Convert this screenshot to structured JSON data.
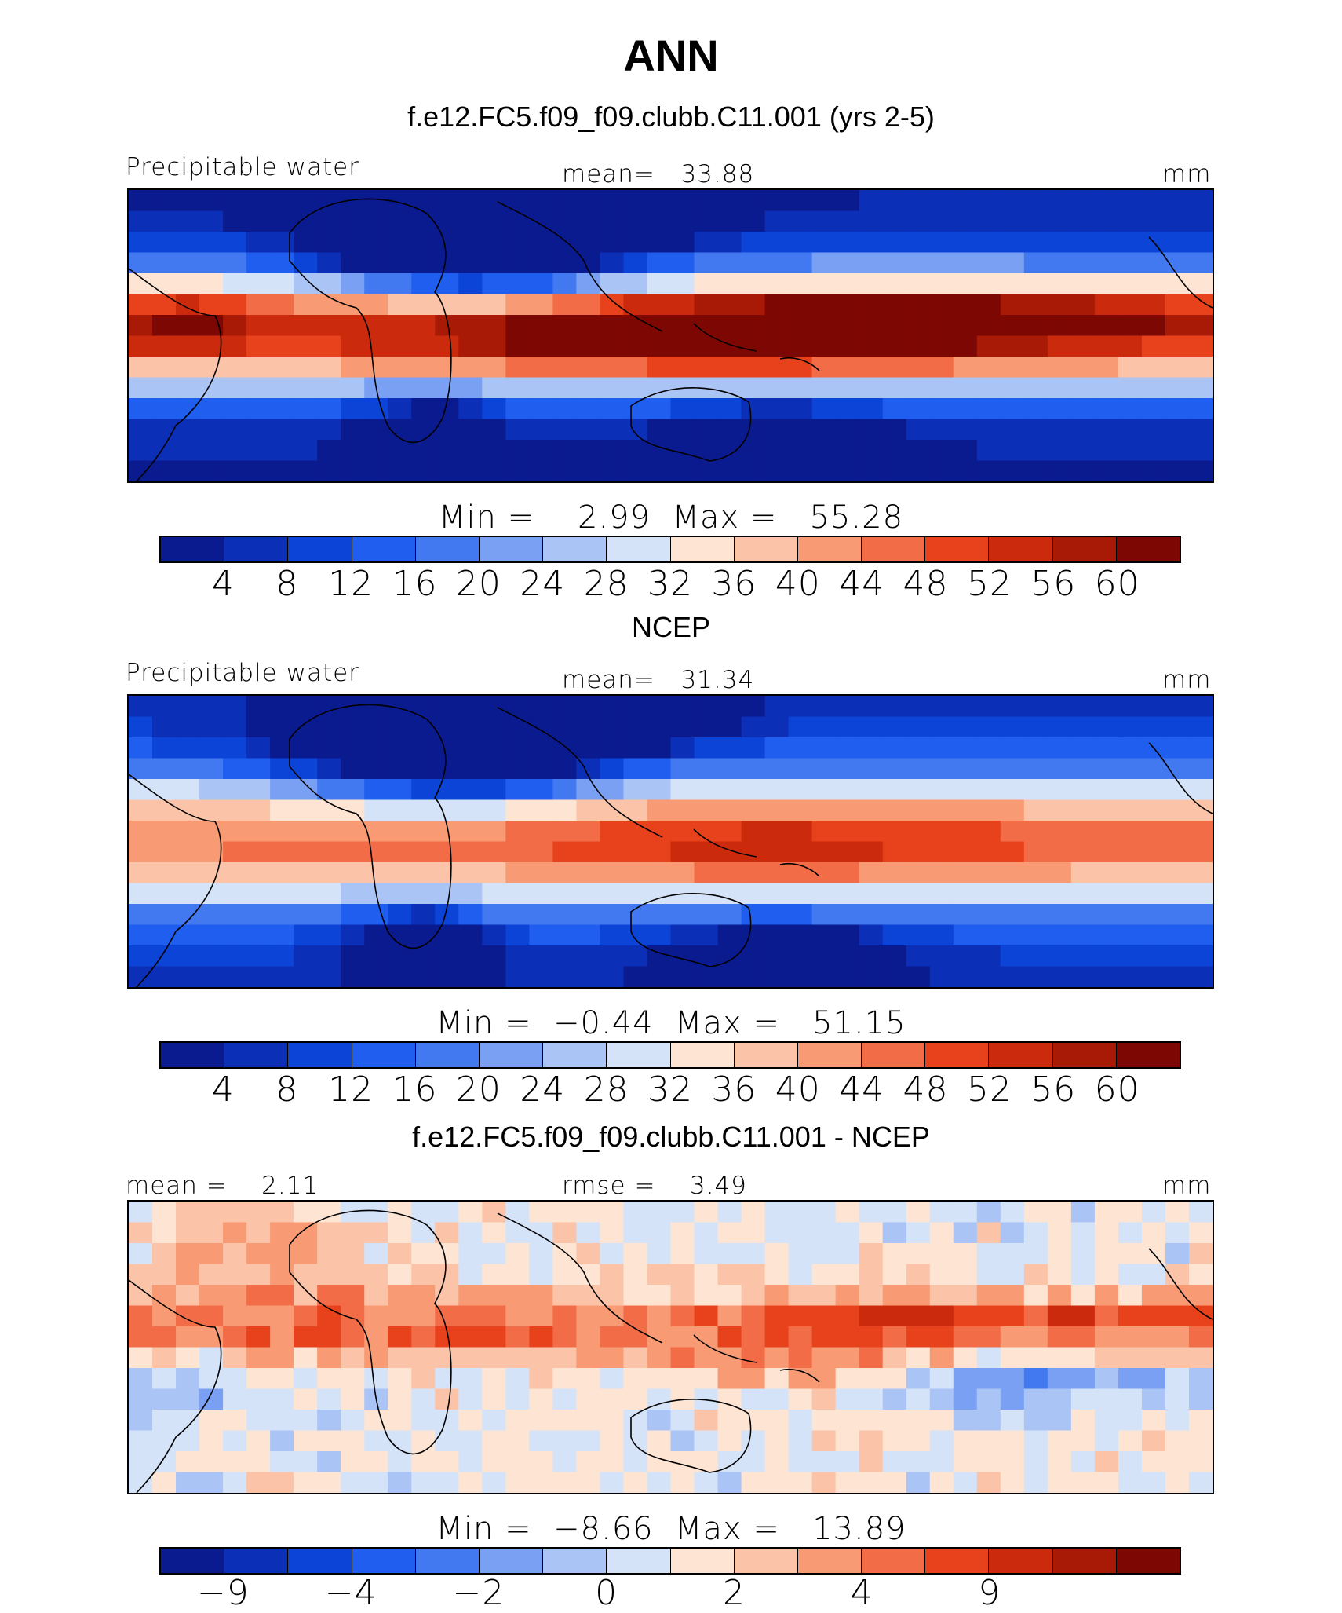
{
  "figure": {
    "season": "ANN"
  },
  "chart_data": [
    {
      "type": "heatmap",
      "title": "f.e12.FC5.f09_f09.clubb.C11.001 (yrs 2-5)",
      "variable": "Precipitable water",
      "mean_text": "mean=   33.88",
      "units": "mm",
      "min_max_text": "Min =    2.99  Max =   55.28",
      "colorbar_levels": [
        4,
        8,
        12,
        16,
        20,
        24,
        28,
        32,
        36,
        40,
        44,
        48,
        52,
        56,
        60
      ],
      "colorbar_tick_labels": [
        "4",
        "8",
        "12",
        "16",
        "20",
        "24",
        "28",
        "32",
        "36",
        "40",
        "44",
        "48",
        "52",
        "56",
        "60"
      ]
    },
    {
      "type": "heatmap",
      "title": "NCEP",
      "variable": "Precipitable water",
      "mean_text": "mean=   31.34",
      "units": "mm",
      "min_max_text": "Min =  −0.44  Max =   51.15",
      "colorbar_levels": [
        4,
        8,
        12,
        16,
        20,
        24,
        28,
        32,
        36,
        40,
        44,
        48,
        52,
        56,
        60
      ],
      "colorbar_tick_labels": [
        "4",
        "8",
        "12",
        "16",
        "20",
        "24",
        "28",
        "32",
        "36",
        "40",
        "44",
        "48",
        "52",
        "56",
        "60"
      ]
    },
    {
      "type": "heatmap",
      "title": "f.e12.FC5.f09_f09.clubb.C11.001 - NCEP",
      "mean_text": "mean =    2.11",
      "rmse_text": "rmse =    3.49",
      "units": "mm",
      "min_max_text": "Min =  −8.66  Max =   13.89",
      "colorbar_levels": [
        -9,
        -6,
        -4,
        -3,
        -2,
        -1,
        0,
        1,
        2,
        3,
        4,
        6,
        9,
        12,
        15
      ],
      "colorbar_tick_labels": [
        "−9",
        "−4",
        "−2",
        "0",
        "2",
        "4",
        "9"
      ]
    }
  ],
  "palette": [
    "#0a1a8f",
    "#0c2fb8",
    "#0b44d6",
    "#1f5eee",
    "#4379f0",
    "#7aa0f3",
    "#aac4f5",
    "#d4e3f8",
    "#fde4d3",
    "#fbc4a8",
    "#f89a73",
    "#f26d47",
    "#e8421c",
    "#cc2a0c",
    "#a81a06",
    "#7d0702"
  ]
}
